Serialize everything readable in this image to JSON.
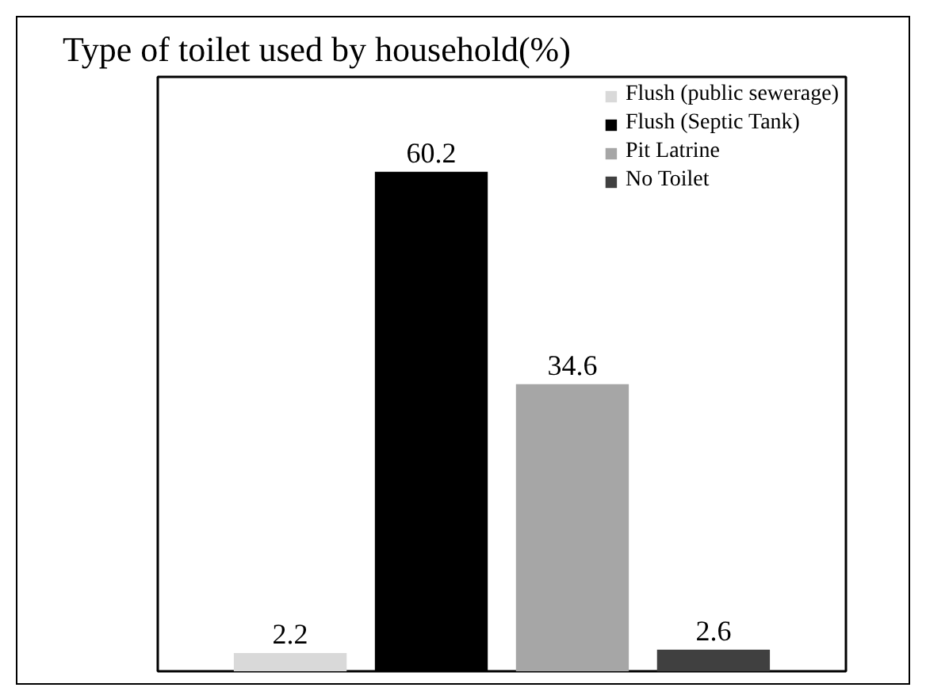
{
  "chart_data": {
    "type": "bar",
    "title": "Type of toilet used by household(%)",
    "categories": [
      null
    ],
    "series": [
      {
        "name": "Flush (public sewerage)",
        "color": "#d9d9d9",
        "values": [
          2.2
        ]
      },
      {
        "name": "Flush (Septic Tank)",
        "color": "#000000",
        "values": [
          60.2
        ]
      },
      {
        "name": "Pit Latrine",
        "color": "#a6a6a6",
        "values": [
          34.6
        ]
      },
      {
        "name": "No Toilet",
        "color": "#404040",
        "values": [
          2.6
        ]
      }
    ],
    "data_labels": true,
    "legend": "top right",
    "grid": false
  }
}
